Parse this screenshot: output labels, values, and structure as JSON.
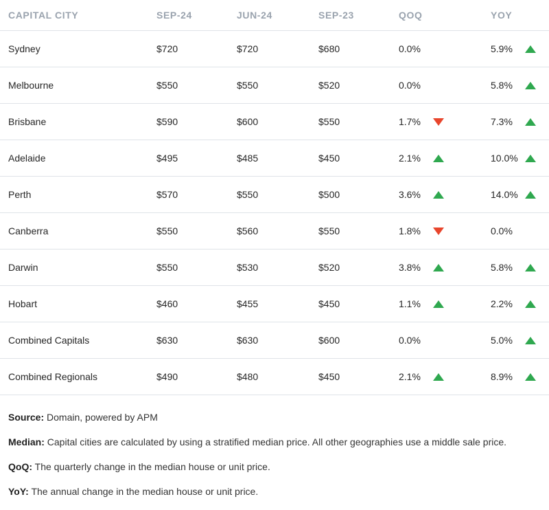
{
  "table": {
    "headers": [
      "CAPITAL CITY",
      "SEP-24",
      "JUN-24",
      "SEP-23",
      "QOQ",
      "YOY"
    ],
    "rows": [
      {
        "city": "Sydney",
        "sep24": "$720",
        "jun24": "$720",
        "sep23": "$680",
        "qoq": "0.0%",
        "qoq_dir": "flat",
        "yoy": "5.9%",
        "yoy_dir": "up"
      },
      {
        "city": "Melbourne",
        "sep24": "$550",
        "jun24": "$550",
        "sep23": "$520",
        "qoq": "0.0%",
        "qoq_dir": "flat",
        "yoy": "5.8%",
        "yoy_dir": "up"
      },
      {
        "city": "Brisbane",
        "sep24": "$590",
        "jun24": "$600",
        "sep23": "$550",
        "qoq": "1.7%",
        "qoq_dir": "down",
        "yoy": "7.3%",
        "yoy_dir": "up"
      },
      {
        "city": "Adelaide",
        "sep24": "$495",
        "jun24": "$485",
        "sep23": "$450",
        "qoq": "2.1%",
        "qoq_dir": "up",
        "yoy": "10.0%",
        "yoy_dir": "up"
      },
      {
        "city": "Perth",
        "sep24": "$570",
        "jun24": "$550",
        "sep23": "$500",
        "qoq": "3.6%",
        "qoq_dir": "up",
        "yoy": "14.0%",
        "yoy_dir": "up"
      },
      {
        "city": "Canberra",
        "sep24": "$550",
        "jun24": "$560",
        "sep23": "$550",
        "qoq": "1.8%",
        "qoq_dir": "down",
        "yoy": "0.0%",
        "yoy_dir": "flat"
      },
      {
        "city": "Darwin",
        "sep24": "$550",
        "jun24": "$530",
        "sep23": "$520",
        "qoq": "3.8%",
        "qoq_dir": "up",
        "yoy": "5.8%",
        "yoy_dir": "up"
      },
      {
        "city": "Hobart",
        "sep24": "$460",
        "jun24": "$455",
        "sep23": "$450",
        "qoq": "1.1%",
        "qoq_dir": "up",
        "yoy": "2.2%",
        "yoy_dir": "up"
      },
      {
        "city": "Combined Capitals",
        "sep24": "$630",
        "jun24": "$630",
        "sep23": "$600",
        "qoq": "0.0%",
        "qoq_dir": "flat",
        "yoy": "5.0%",
        "yoy_dir": "up"
      },
      {
        "city": "Combined Regionals",
        "sep24": "$490",
        "jun24": "$480",
        "sep23": "$450",
        "qoq": "2.1%",
        "qoq_dir": "up",
        "yoy": "8.9%",
        "yoy_dir": "up"
      }
    ]
  },
  "notes": [
    {
      "label": "Source:",
      "text": " Domain, powered by APM"
    },
    {
      "label": "Median:",
      "text": " Capital cities are calculated by using a stratified median price. All other geographies use a middle sale price."
    },
    {
      "label": "QoQ:",
      "text": " The quarterly change in the median house or unit price."
    },
    {
      "label": "YoY:",
      "text": " The annual change in the median house or unit price."
    }
  ],
  "colors": {
    "up": "#2fa84f",
    "down": "#e8452c",
    "header_text": "#9aa3ae",
    "divider": "#dfe3e8"
  }
}
